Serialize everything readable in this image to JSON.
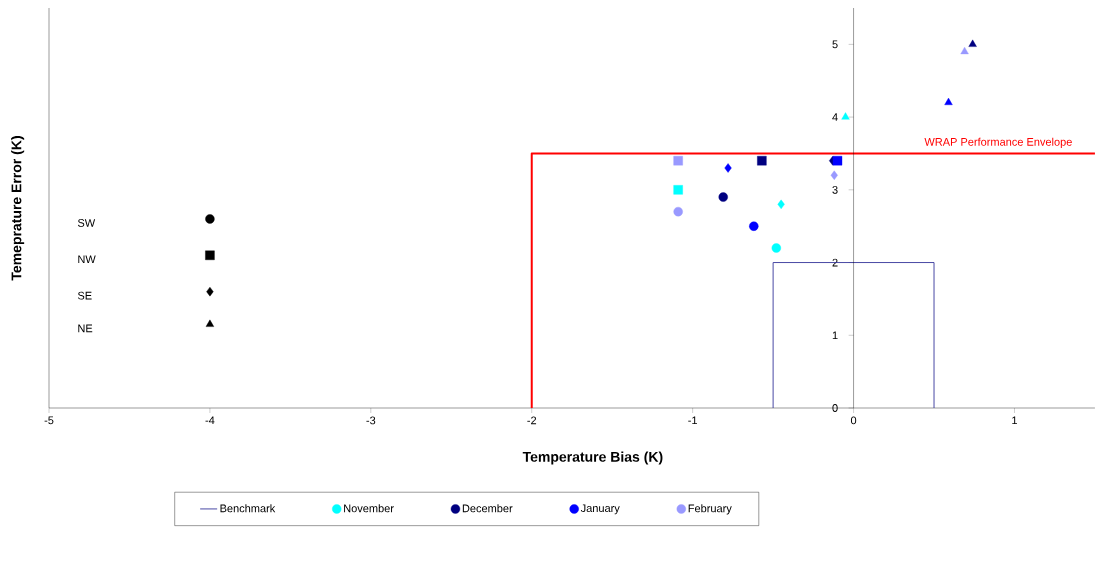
{
  "chart_data": {
    "type": "scatter",
    "xlabel": "Temperature Bias (K)",
    "ylabel": "Temeprature Error (K)",
    "xlim": [
      -5,
      1.5
    ],
    "ylim": [
      0,
      5.5
    ],
    "xticks": [
      -5,
      -4,
      -3,
      -2,
      -1,
      0,
      1
    ],
    "yticks": [
      0,
      1,
      2,
      3,
      4,
      5
    ],
    "legend": "bottom",
    "series": [
      {
        "name": "Benchmark",
        "type": "line",
        "color": "#333399",
        "x": [
          -0.5,
          -0.5,
          0.5,
          0.5
        ],
        "values": [
          0,
          2,
          2,
          0
        ]
      },
      {
        "type": "line",
        "color": "#ff0000",
        "x": [
          -2,
          -2,
          1.5
        ],
        "values": [
          0,
          3.5,
          3.5
        ]
      },
      {
        "name": "November",
        "color": "#00ffff",
        "marker": "circle",
        "x": [
          -0.48
        ],
        "values": [
          2.2
        ]
      },
      {
        "name": "December",
        "color": "#000080",
        "marker": "circle",
        "x": [
          -0.81
        ],
        "values": [
          2.9
        ]
      },
      {
        "name": "January",
        "color": "#0000ff",
        "marker": "circle",
        "x": [
          -0.62
        ],
        "values": [
          2.5
        ]
      },
      {
        "name": "February",
        "color": "#9999ff",
        "marker": "circle",
        "x": [
          -1.09
        ],
        "values": [
          2.7
        ]
      },
      {
        "color": "#00ffff",
        "marker": "square",
        "x": [
          -1.09
        ],
        "values": [
          3.0
        ]
      },
      {
        "color": "#00ffff",
        "marker": "diamond",
        "x": [
          -0.45
        ],
        "values": [
          2.8
        ]
      },
      {
        "color": "#00ffff",
        "marker": "triangle",
        "x": [
          -0.05
        ],
        "values": [
          4.0
        ]
      },
      {
        "color": "#000080",
        "marker": "square",
        "x": [
          -0.57
        ],
        "values": [
          3.4
        ]
      },
      {
        "color": "#000080",
        "marker": "diamond",
        "x": [
          -0.13
        ],
        "values": [
          3.4
        ]
      },
      {
        "color": "#000080",
        "marker": "triangle",
        "x": [
          0.74
        ],
        "values": [
          5.0
        ]
      },
      {
        "color": "#0000ff",
        "marker": "square",
        "x": [
          -0.1
        ],
        "values": [
          3.4
        ]
      },
      {
        "color": "#0000ff",
        "marker": "diamond",
        "x": [
          -0.78
        ],
        "values": [
          3.3
        ]
      },
      {
        "color": "#0000ff",
        "marker": "triangle",
        "x": [
          0.59
        ],
        "values": [
          4.2
        ]
      },
      {
        "color": "#9999ff",
        "marker": "square",
        "x": [
          -1.09
        ],
        "values": [
          3.4
        ]
      },
      {
        "color": "#9999ff",
        "marker": "diamond",
        "x": [
          -0.12
        ],
        "values": [
          3.2
        ]
      },
      {
        "color": "#9999ff",
        "marker": "triangle",
        "x": [
          0.69
        ],
        "values": [
          4.9
        ]
      },
      {
        "color": "#000000",
        "marker": "circle",
        "x": [
          -4
        ],
        "values": [
          2.6
        ]
      },
      {
        "color": "#000000",
        "marker": "square",
        "x": [
          -4
        ],
        "values": [
          2.1
        ]
      },
      {
        "color": "#000000",
        "marker": "diamond",
        "x": [
          -4
        ],
        "values": [
          1.6
        ]
      },
      {
        "color": "#000000",
        "marker": "triangle",
        "x": [
          -4
        ],
        "values": [
          1.15
        ]
      }
    ],
    "annotations": [
      {
        "text": "WRAP Performance Envelope",
        "x": 0.9,
        "y": 3.5
      },
      "SW",
      "NW",
      "SE",
      "NE"
    ]
  }
}
